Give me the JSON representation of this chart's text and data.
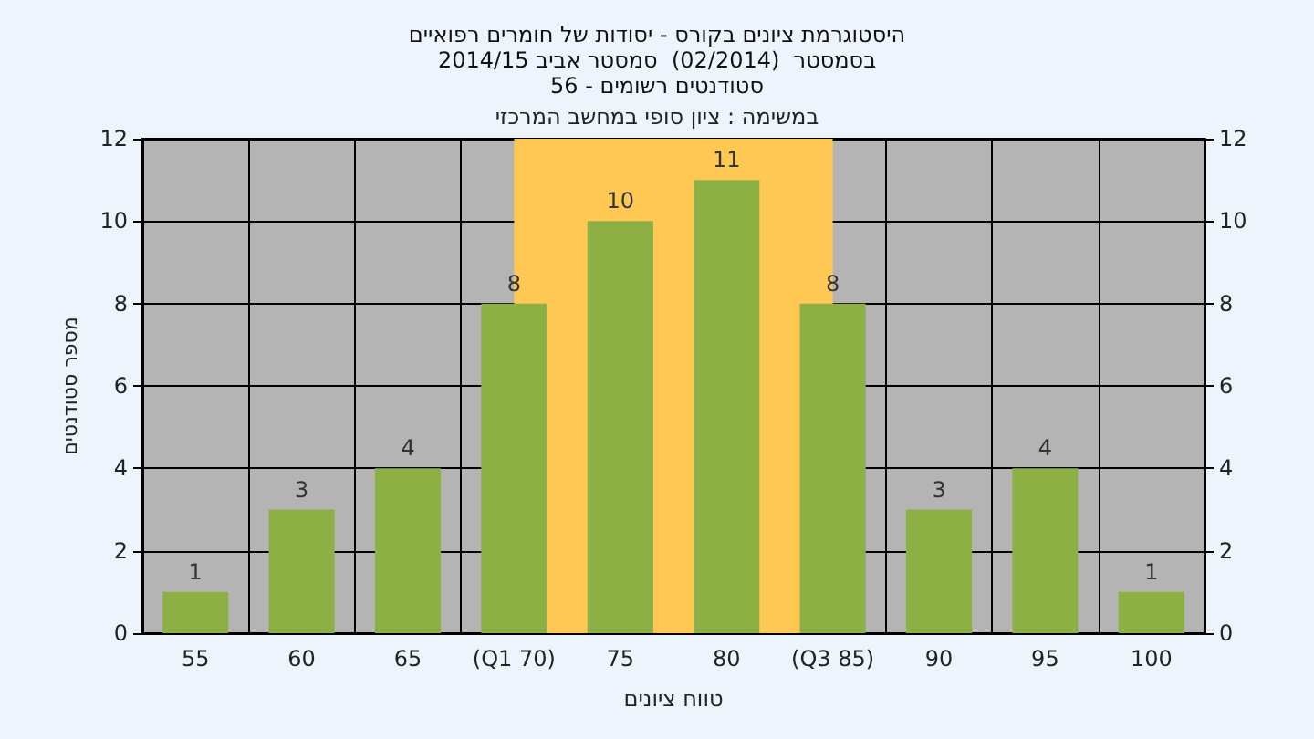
{
  "chart_data": {
    "type": "bar",
    "title": "היסטוגרמת ציונים בקורס - יסודות של חומרים רפואיים",
    "subtitle": "בסמסטר  (02/2014)  סמסטר אביב 2014/15\nסטודנטים רשומים - 56",
    "xlabel": "טווח ציונים",
    "ylabel": "מספר סטודנטים",
    "categories": [
      "55",
      "60",
      "65",
      "(Q1 70)",
      "75",
      "80",
      "(Q3 85)",
      "90",
      "95",
      "100"
    ],
    "values": [
      1,
      3,
      4,
      8,
      10,
      11,
      8,
      3,
      4,
      1
    ],
    "color": "#8db045",
    "ylim": [
      0,
      12
    ],
    "yticks": [
      0,
      2,
      4,
      6,
      8,
      10,
      12
    ],
    "y2lim": [
      0,
      12
    ],
    "y2ticks": [
      0,
      2,
      4,
      6,
      8,
      10,
      12
    ],
    "bands": [
      {
        "axis": "x",
        "from": "(Q1 70)",
        "to": "(Q3 85)",
        "color": "#ffc853"
      }
    ],
    "annotations": [
      "במשימה : ציון סופי במחשב המרכזי"
    ],
    "data_labels": true,
    "grid": true
  }
}
